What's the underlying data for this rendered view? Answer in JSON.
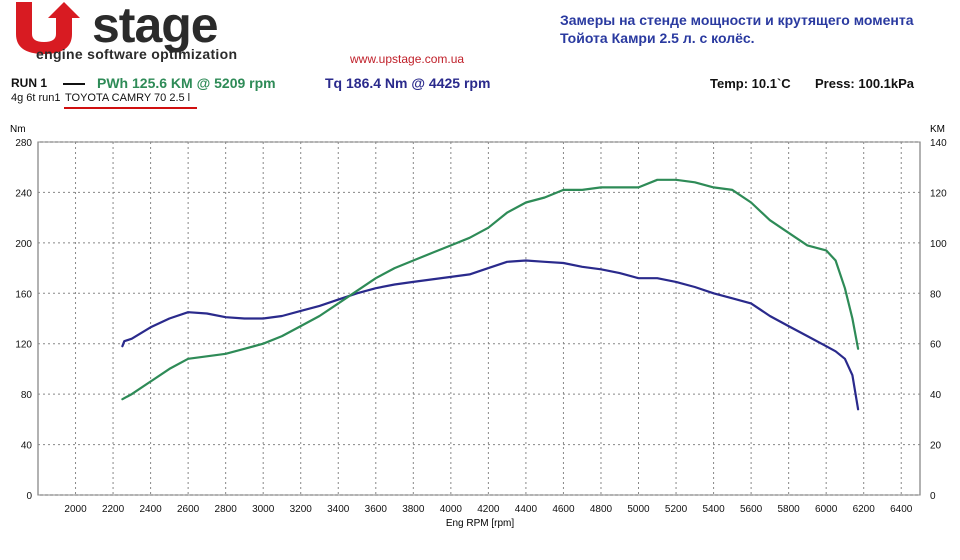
{
  "header": {
    "logo_text": "UPstage",
    "logo_word": "stage",
    "logo_sub": "engine software optimization",
    "site": "www.upstage.com.ua",
    "subtitle": "Замеры на стенде мощности и крутящего момента Тойота Камри 2.5 л. с колёс."
  },
  "run": {
    "label": "RUN 1",
    "pwh": "PWh  125.6 KM @ 5209 rpm",
    "tq": "Tq 186.4 Nm @ 4425 rpm",
    "temp": "Temp: 10.1`C",
    "press": "Press: 100.1kPa",
    "run_id": "4g 6t run1",
    "car": "TOYOTA CAMRY 70 2.5 l"
  },
  "colors": {
    "torque": "#2a2a8c",
    "power": "#2e8b57",
    "underline": "#d01010"
  },
  "chart_data": {
    "type": "line",
    "xlabel": "Eng RPM [rpm]",
    "ylabel_left": "Nm",
    "ylabel_right": "KM",
    "xlim": [
      1800,
      6500
    ],
    "ylim_left": [
      0,
      280
    ],
    "ylim_right": [
      0,
      140
    ],
    "x_ticks": [
      2000,
      2200,
      2400,
      2600,
      2800,
      3000,
      3200,
      3400,
      3600,
      3800,
      4000,
      4200,
      4400,
      4600,
      4800,
      5000,
      5200,
      5400,
      5600,
      5800,
      6000,
      6200,
      6400
    ],
    "y_ticks_left": [
      0,
      40,
      80,
      120,
      160,
      200,
      240,
      280
    ],
    "y_ticks_right": [
      0,
      20,
      40,
      60,
      80,
      100,
      120,
      140
    ],
    "grid": true,
    "series": [
      {
        "name": "Tq",
        "axis": "left",
        "x": [
          2250,
          2260,
          2300,
          2400,
          2500,
          2600,
          2700,
          2800,
          2900,
          3000,
          3100,
          3200,
          3300,
          3400,
          3500,
          3600,
          3700,
          3800,
          3900,
          4000,
          4100,
          4200,
          4300,
          4400,
          4500,
          4600,
          4700,
          4800,
          4900,
          5000,
          5100,
          5200,
          5300,
          5400,
          5500,
          5600,
          5700,
          5800,
          5900,
          6000,
          6050,
          6100,
          6140,
          6170
        ],
        "values": [
          118,
          122,
          124,
          133,
          140,
          145,
          144,
          141,
          140,
          140,
          142,
          146,
          150,
          155,
          160,
          164,
          167,
          169,
          171,
          173,
          175,
          180,
          185,
          186,
          185,
          184,
          181,
          179,
          176,
          172,
          172,
          169,
          165,
          160,
          156,
          152,
          142,
          134,
          126,
          118,
          114,
          108,
          95,
          68
        ]
      },
      {
        "name": "PWh",
        "axis": "right",
        "x": [
          2250,
          2300,
          2400,
          2500,
          2600,
          2700,
          2800,
          2900,
          3000,
          3100,
          3200,
          3300,
          3400,
          3500,
          3600,
          3700,
          3800,
          3900,
          4000,
          4100,
          4200,
          4300,
          4400,
          4500,
          4600,
          4700,
          4800,
          4900,
          5000,
          5100,
          5200,
          5300,
          5400,
          5500,
          5600,
          5700,
          5800,
          5900,
          6000,
          6050,
          6100,
          6140,
          6170
        ],
        "values": [
          38,
          40,
          45,
          50,
          54,
          55,
          56,
          58,
          60,
          63,
          67,
          71,
          76,
          81,
          86,
          90,
          93,
          96,
          99,
          102,
          106,
          112,
          116,
          118,
          121,
          121,
          122,
          122,
          122,
          125,
          125,
          124,
          122,
          121,
          116,
          109,
          104,
          99,
          97,
          93,
          82,
          70,
          58
        ]
      }
    ]
  }
}
